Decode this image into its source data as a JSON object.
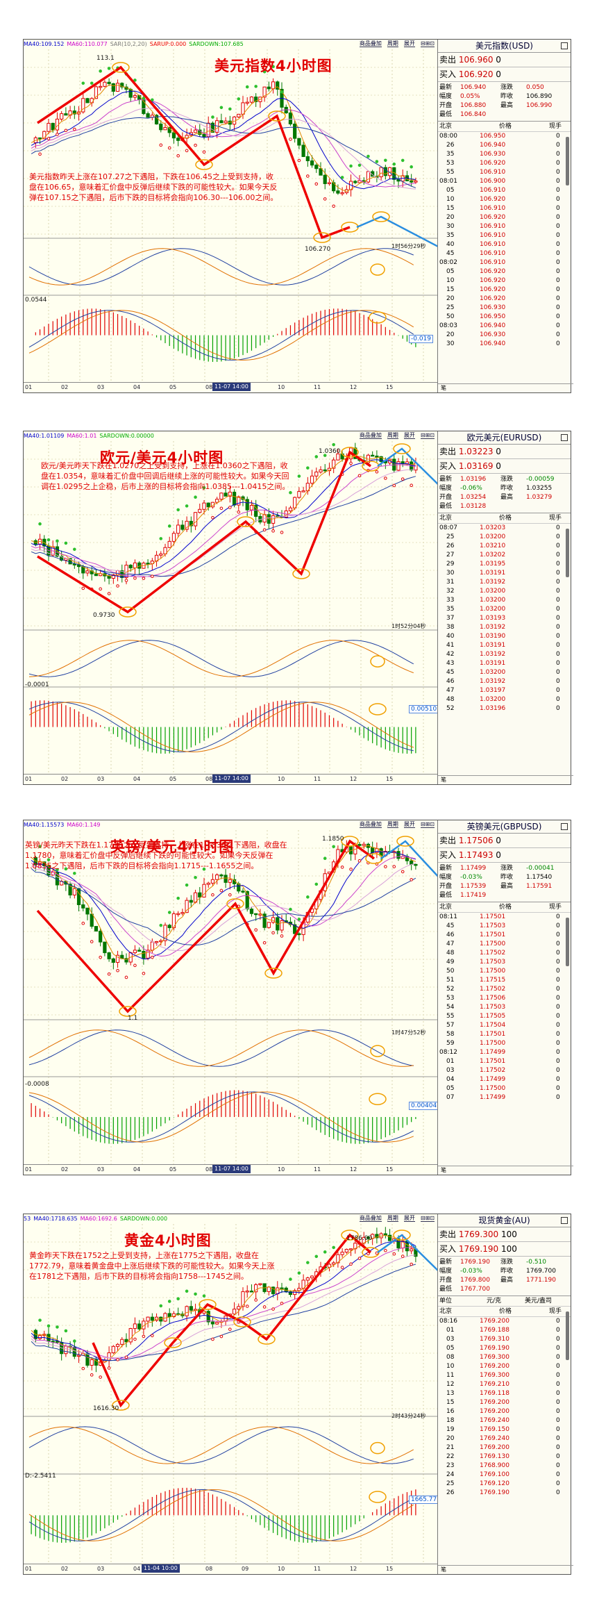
{
  "common": {
    "btn_add": "商品叠加",
    "btn_zoom": "周期",
    "btn_more": "展开",
    "x_labels": [
      "01",
      "02",
      "03",
      "04",
      "05",
      "08",
      "09",
      "10",
      "11",
      "12",
      "15"
    ],
    "col_time": "北京",
    "col_price": "价格",
    "col_vol": "现手",
    "foot": "笔"
  },
  "panels": [
    {
      "title": "美元指数4小时图",
      "ind": [
        "MA40:109.152",
        "MA60:110.077",
        "SAR(10,2,20)",
        "SARUP:0.000",
        "SARDOWN:107.685"
      ],
      "ind_colors": [
        "#0000cc",
        "#cc00cc",
        "#777",
        "#e00",
        "#0a0"
      ],
      "annotation": "美元指数昨天上涨在107.27之下遇阻，下跌在106.45之上受到支持，收盘在106.65，意味着汇价盘中反弹后继续下跌的可能性较大。如果今天反弹在107.15之下遇阻，后市下跌的目标将会指向106.30---106.00之间。",
      "high_label": "113.1",
      "low_label": "106.270",
      "timer": "1时56分29秒",
      "osc_label": "0.0544",
      "valbox": "-0.019",
      "date_tag": "11-07 14:00",
      "q": {
        "name": "美元指数(USD)",
        "sell_label": "卖出",
        "sell": "106.960",
        "sell_n": "0",
        "buy_label": "买入",
        "buy": "106.920",
        "buy_n": "0",
        "stats": [
          [
            "最新",
            "106.940",
            "涨跌",
            "0.050"
          ],
          [
            "幅度",
            "0.05%",
            "昨收",
            "106.890"
          ],
          [
            "开盘",
            "106.880",
            "最高",
            "106.990"
          ],
          [
            "最低",
            "106.840",
            "",
            ""
          ]
        ],
        "ticks": [
          [
            "08:00",
            "106.950",
            "0"
          ],
          [
            "26",
            "106.940",
            "0"
          ],
          [
            "35",
            "106.930",
            "0"
          ],
          [
            "53",
            "106.920",
            "0"
          ],
          [
            "55",
            "106.910",
            "0"
          ],
          [
            "08:01",
            "106.900",
            "0"
          ],
          [
            "05",
            "106.910",
            "0"
          ],
          [
            "10",
            "106.920",
            "0"
          ],
          [
            "15",
            "106.910",
            "0"
          ],
          [
            "20",
            "106.920",
            "0"
          ],
          [
            "30",
            "106.910",
            "0"
          ],
          [
            "35",
            "106.910",
            "0"
          ],
          [
            "40",
            "106.910",
            "0"
          ],
          [
            "45",
            "106.910",
            "0"
          ],
          [
            "08:02",
            "106.910",
            "0"
          ],
          [
            "05",
            "106.920",
            "0"
          ],
          [
            "10",
            "106.920",
            "0"
          ],
          [
            "15",
            "106.920",
            "0"
          ],
          [
            "20",
            "106.920",
            "0"
          ],
          [
            "25",
            "106.930",
            "0"
          ],
          [
            "50",
            "106.950",
            "0"
          ],
          [
            "08:03",
            "106.940",
            "0"
          ],
          [
            "20",
            "106.930",
            "0"
          ],
          [
            "30",
            "106.940",
            "0"
          ]
        ]
      }
    },
    {
      "title": "欧元/美元4小时图",
      "ind": [
        "MA40:1.01109",
        "MA60:1.01",
        "SARDOWN:0.00000"
      ],
      "ind_colors": [
        "#0000cc",
        "#cc00cc",
        "#0a0"
      ],
      "annotation": "欧元/美元昨天下跌在1.0270之上受到支持，上涨在1.0360之下遇阻，收盘在1.0354，意味着汇价盘中回调后继续上涨的可能性较大。如果今天回调在1.0295之上企稳，后市上涨的目标将会指向1.0385---1.0415之间。",
      "high_label": "1.0360",
      "low_label": "0.9730",
      "timer": "1时52分04秒",
      "osc_label": "-0.0001",
      "valbox": "0.00510",
      "date_tag": "11-07 14:00",
      "q": {
        "name": "欧元美元(EURUSD)",
        "sell_label": "卖出",
        "sell": "1.03223",
        "sell_n": "0",
        "buy_label": "买入",
        "buy": "1.03169",
        "buy_n": "0",
        "stats": [
          [
            "最新",
            "1.03196",
            "涨跌",
            "-0.00059"
          ],
          [
            "幅度",
            "-0.06%",
            "昨收",
            "1.03255"
          ],
          [
            "开盘",
            "1.03254",
            "最高",
            "1.03279"
          ],
          [
            "最低",
            "1.03128",
            "",
            ""
          ]
        ],
        "ticks": [
          [
            "08:07",
            "1.03203",
            "0"
          ],
          [
            "25",
            "1.03200",
            "0"
          ],
          [
            "26",
            "1.03210",
            "0"
          ],
          [
            "27",
            "1.03202",
            "0"
          ],
          [
            "29",
            "1.03195",
            "0"
          ],
          [
            "30",
            "1.03191",
            "0"
          ],
          [
            "31",
            "1.03192",
            "0"
          ],
          [
            "32",
            "1.03200",
            "0"
          ],
          [
            "33",
            "1.03200",
            "0"
          ],
          [
            "35",
            "1.03200",
            "0"
          ],
          [
            "37",
            "1.03193",
            "0"
          ],
          [
            "38",
            "1.03192",
            "0"
          ],
          [
            "40",
            "1.03190",
            "0"
          ],
          [
            "41",
            "1.03191",
            "0"
          ],
          [
            "42",
            "1.03192",
            "0"
          ],
          [
            "43",
            "1.03191",
            "0"
          ],
          [
            "45",
            "1.03200",
            "0"
          ],
          [
            "46",
            "1.03192",
            "0"
          ],
          [
            "47",
            "1.03197",
            "0"
          ],
          [
            "48",
            "1.03200",
            "0"
          ],
          [
            "52",
            "1.03196",
            "0"
          ]
        ]
      }
    },
    {
      "title": "英镑/美元4小时图",
      "ind": [
        "MA40:1.15573",
        "MA60:1.149"
      ],
      "ind_colors": [
        "#0000cc",
        "#cc00cc"
      ],
      "annotation": "英镑/美元昨天下跌在1.1710之上受到支持，上涨在1.1830之下遇阻，收盘在1.1780，意味着汇价盘中反弹后继续下跌的可能性较大。如果今天反弹在1.0835之下遇阻，后市下跌的目标将会指向1.1715---1.1655之间。",
      "high_label": "1.1850",
      "low_label": "1.1",
      "timer": "1时47分52秒",
      "osc_label": "-0.0008",
      "valbox": "0.00404",
      "date_tag": "11-07 14:00",
      "q": {
        "name": "英镑美元(GBPUSD)",
        "sell_label": "卖出",
        "sell": "1.17506",
        "sell_n": "0",
        "buy_label": "买入",
        "buy": "1.17493",
        "buy_n": "0",
        "stats": [
          [
            "最新",
            "1.17499",
            "涨跌",
            "-0.00041"
          ],
          [
            "幅度",
            "-0.03%",
            "昨收",
            "1.17540"
          ],
          [
            "开盘",
            "1.17539",
            "最高",
            "1.17591"
          ],
          [
            "最低",
            "1.17419",
            "",
            ""
          ]
        ],
        "ticks": [
          [
            "08:11",
            "1.17501",
            "0"
          ],
          [
            "45",
            "1.17503",
            "0"
          ],
          [
            "46",
            "1.17501",
            "0"
          ],
          [
            "47",
            "1.17500",
            "0"
          ],
          [
            "48",
            "1.17502",
            "0"
          ],
          [
            "49",
            "1.17503",
            "0"
          ],
          [
            "50",
            "1.17500",
            "0"
          ],
          [
            "51",
            "1.17515",
            "0"
          ],
          [
            "52",
            "1.17502",
            "0"
          ],
          [
            "53",
            "1.17506",
            "0"
          ],
          [
            "54",
            "1.17503",
            "0"
          ],
          [
            "55",
            "1.17505",
            "0"
          ],
          [
            "57",
            "1.17504",
            "0"
          ],
          [
            "58",
            "1.17501",
            "0"
          ],
          [
            "59",
            "1.17500",
            "0"
          ],
          [
            "08:12",
            "1.17499",
            "0"
          ],
          [
            "01",
            "1.17501",
            "0"
          ],
          [
            "03",
            "1.17502",
            "0"
          ],
          [
            "04",
            "1.17499",
            "0"
          ],
          [
            "05",
            "1.17500",
            "0"
          ],
          [
            "07",
            "1.17499",
            "0"
          ]
        ]
      }
    },
    {
      "title": "黄金4小时图",
      "ind": [
        "53",
        "MA40:1718.635",
        "MA60:1692.6",
        "SARDOWN:0.000"
      ],
      "ind_colors": [
        "#00c",
        "#0000cc",
        "#cc00cc",
        "#0a0"
      ],
      "annotation": "黄金昨天下跌在1752之上受到支持，上涨在1775之下遇阻，收盘在1772.79，意味着黄金盘中上涨后继续下跌的可能性较大。如果今天上涨在1781之下遇阻，后市下跌的目标将会指向1758---1745之间。",
      "high_label": "1786.00",
      "low_label": "1616.30",
      "timer": "2时43分24秒",
      "osc_label": "D:-2.5411",
      "valbox": "1665.777",
      "date_tag": "11-04 10:00",
      "q": {
        "name": "现货黄金(AU)",
        "sell_label": "卖出",
        "sell": "1769.300",
        "sell_n": "100",
        "buy_label": "买入",
        "buy": "1769.190",
        "buy_n": "100",
        "stats": [
          [
            "最新",
            "1769.190",
            "涨跌",
            "-0.510"
          ],
          [
            "幅度",
            "-0.03%",
            "昨收",
            "1769.700"
          ],
          [
            "开盘",
            "1769.800",
            "最高",
            "1771.190"
          ],
          [
            "最低",
            "1767.700",
            "",
            ""
          ]
        ],
        "unit_row": [
          "单位",
          "元/克",
          "美元/盎司"
        ],
        "ticks": [
          [
            "08:16",
            "1769.200",
            "0"
          ],
          [
            "01",
            "1769.188",
            "0"
          ],
          [
            "03",
            "1769.310",
            "0"
          ],
          [
            "05",
            "1769.190",
            "0"
          ],
          [
            "08",
            "1769.300",
            "0"
          ],
          [
            "10",
            "1769.200",
            "0"
          ],
          [
            "11",
            "1769.300",
            "0"
          ],
          [
            "12",
            "1769.210",
            "0"
          ],
          [
            "13",
            "1769.118",
            "0"
          ],
          [
            "15",
            "1769.200",
            "0"
          ],
          [
            "16",
            "1769.200",
            "0"
          ],
          [
            "18",
            "1769.240",
            "0"
          ],
          [
            "19",
            "1769.150",
            "0"
          ],
          [
            "20",
            "1769.240",
            "0"
          ],
          [
            "21",
            "1769.200",
            "0"
          ],
          [
            "22",
            "1769.130",
            "0"
          ],
          [
            "23",
            "1768.900",
            "0"
          ],
          [
            "24",
            "1769.100",
            "0"
          ],
          [
            "25",
            "1769.120",
            "0"
          ],
          [
            "26",
            "1769.190",
            "0"
          ]
        ]
      }
    }
  ]
}
